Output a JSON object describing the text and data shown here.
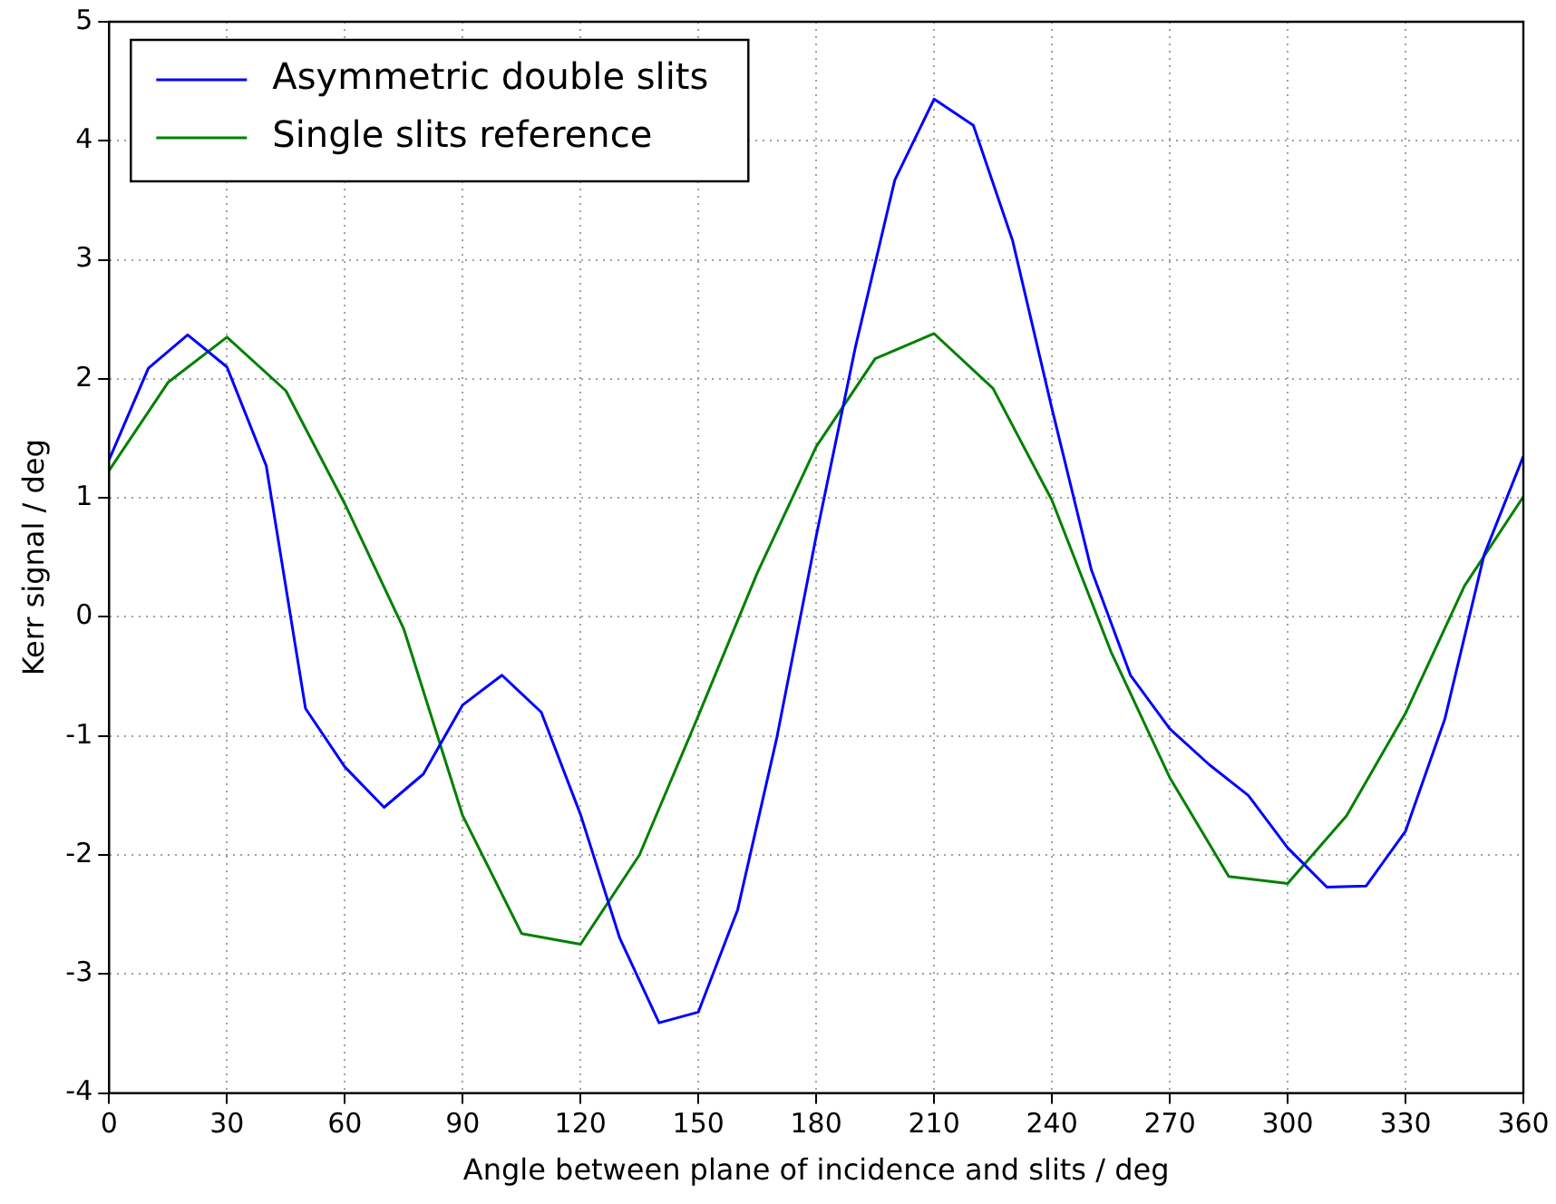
{
  "chart_data": {
    "type": "line",
    "xlabel": "Angle between plane of incidence and slits / deg",
    "ylabel": "Kerr signal / deg",
    "xlim": [
      0,
      360
    ],
    "xticks": [
      0,
      30,
      60,
      90,
      120,
      150,
      180,
      210,
      240,
      270,
      300,
      330,
      360
    ],
    "ylim": [
      -4,
      5
    ],
    "yticks": [
      -4,
      -3,
      -2,
      -1,
      0,
      1,
      2,
      3,
      4,
      5
    ],
    "grid": true,
    "legend": "top left",
    "marker": "none",
    "line_style": "solid",
    "series": [
      {
        "name": "Asymmetric double slits",
        "color": "#0000ff",
        "x": [
          0,
          10,
          20,
          30,
          40,
          50,
          60,
          70,
          80,
          90,
          100,
          110,
          120,
          130,
          140,
          150,
          160,
          170,
          180,
          190,
          200,
          210,
          220,
          230,
          240,
          250,
          260,
          270,
          280,
          290,
          300,
          310,
          320,
          330,
          340,
          350,
          360
        ],
        "values": [
          1.32,
          2.09,
          2.37,
          2.1,
          1.27,
          -0.77,
          -1.26,
          -1.6,
          -1.32,
          -0.74,
          -0.49,
          -0.8,
          -1.66,
          -2.7,
          -3.41,
          -3.32,
          -2.46,
          -1.01,
          0.68,
          2.27,
          3.67,
          4.35,
          4.13,
          3.16,
          1.75,
          0.4,
          -0.49,
          -0.94,
          -1.24,
          -1.5,
          -1.94,
          -2.27,
          -2.26,
          -1.8,
          -0.86,
          0.52,
          1.35
        ]
      },
      {
        "name": "Single slits reference",
        "color": "#008000",
        "x": [
          0,
          15,
          30,
          45,
          60,
          75,
          90,
          105,
          120,
          135,
          150,
          165,
          180,
          195,
          210,
          225,
          240,
          255,
          270,
          285,
          300,
          315,
          330,
          345,
          360
        ],
        "values": [
          1.23,
          1.97,
          2.35,
          1.9,
          0.95,
          -0.1,
          -1.67,
          -2.66,
          -2.75,
          -2.0,
          -0.83,
          0.37,
          1.43,
          2.17,
          2.38,
          1.92,
          0.98,
          -0.29,
          -1.35,
          -2.18,
          -2.24,
          -1.67,
          -0.81,
          0.26,
          1.01
        ]
      }
    ]
  }
}
